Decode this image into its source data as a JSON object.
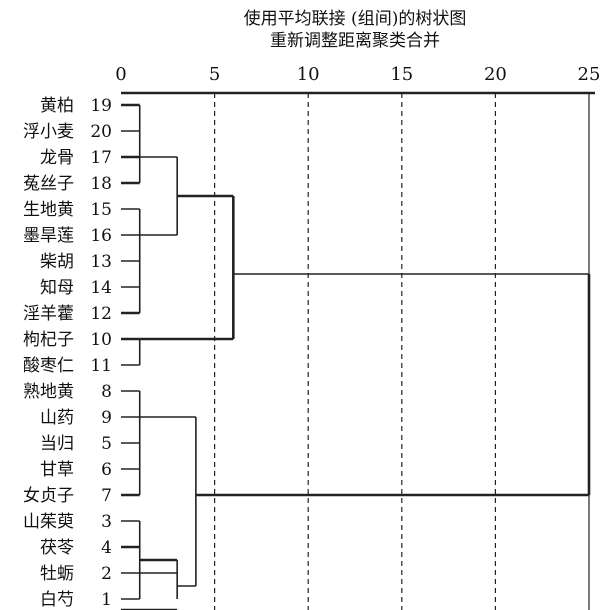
{
  "title_lines": [
    "使用平均联接 (组间)的树状图",
    "重新调整距离聚类合并"
  ],
  "chart_data": {
    "type": "dendrogram",
    "title": "使用平均联接 (组间)的树状图",
    "subtitle": "重新调整距离聚类合并",
    "x_axis": {
      "ticks": [
        0,
        5,
        10,
        15,
        20,
        25
      ],
      "range": [
        0,
        25
      ],
      "position": "top"
    },
    "grid": {
      "vertical_dashed": true
    },
    "leaves": [
      {
        "label": "黄柏",
        "id": 19
      },
      {
        "label": "浮小麦",
        "id": 20
      },
      {
        "label": "龙骨",
        "id": 17
      },
      {
        "label": "菟丝子",
        "id": 18
      },
      {
        "label": "生地黄",
        "id": 15
      },
      {
        "label": "墨旱莲",
        "id": 16
      },
      {
        "label": "柴胡",
        "id": 13
      },
      {
        "label": "知母",
        "id": 14
      },
      {
        "label": "淫羊藿",
        "id": 12
      },
      {
        "label": "枸杞子",
        "id": 10
      },
      {
        "label": "酸枣仁",
        "id": 11
      },
      {
        "label": "熟地黄",
        "id": 8
      },
      {
        "label": "山药",
        "id": 9
      },
      {
        "label": "当归",
        "id": 5
      },
      {
        "label": "甘草",
        "id": 6
      },
      {
        "label": "女贞子",
        "id": 7
      },
      {
        "label": "山茱萸",
        "id": 3
      },
      {
        "label": "茯苓",
        "id": 4
      },
      {
        "label": "牡蛎",
        "id": 2
      },
      {
        "label": "白芍",
        "id": 1
      }
    ],
    "merges": [
      {
        "from": 0,
        "to": 1,
        "height": 1.0
      },
      {
        "from": 2,
        "to": 3,
        "height": 1.0
      },
      {
        "from": 0,
        "to": 3,
        "height": 1.0
      },
      {
        "from": 4,
        "to": 8,
        "height": 1.0
      },
      {
        "from": 9,
        "to": 10,
        "height": 1.0
      },
      {
        "from": 11,
        "to": 15,
        "height": 1.0
      },
      {
        "from": 16,
        "to": 18,
        "height": 1.0
      },
      {
        "from": 17,
        "to": 19,
        "height": 3.0
      },
      {
        "from": 2,
        "to": 5,
        "height": 3.0
      },
      {
        "from": 12,
        "to": 18,
        "height": 4.0
      },
      {
        "from": 6.5,
        "to": 9,
        "height": 6.0
      },
      {
        "from": 6.5,
        "to": 15,
        "height": 25.0
      }
    ]
  }
}
